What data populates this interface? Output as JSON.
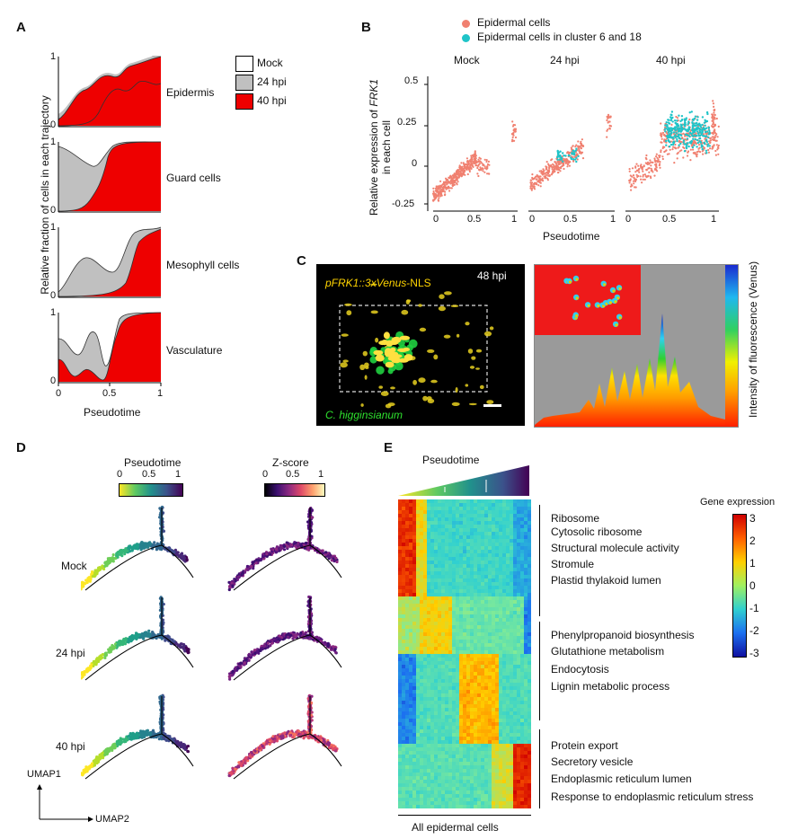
{
  "panels": {
    "a": "A",
    "b": "B",
    "c": "C",
    "d": "D",
    "e": "E"
  },
  "panelA": {
    "ylabel": "Relative fraction of cells in each trajectory",
    "xlabel": "Pseudotime",
    "xticks": [
      "0",
      "0.5",
      "1"
    ],
    "yticks": [
      "1",
      "0"
    ],
    "legend": [
      "Mock",
      "24 hpi",
      "40 hpi"
    ],
    "colors": {
      "mock": "#ffffff",
      "hpi24": "#c0c0c0",
      "hpi40": "#ee0000"
    },
    "rows": [
      "Epidermis",
      "Guard cells",
      "Mesophyll cells",
      "Vasculature"
    ]
  },
  "panelB": {
    "legend": [
      "Epidermal cells",
      "Epidermal cells in cluster 6 and 18"
    ],
    "colors": {
      "epi": "#f08070",
      "cluster": "#1fc4c8"
    },
    "ylabel_line1": "Relative expression of",
    "ylabel_gene": "FRK1",
    "ylabel_line2": "in each cell",
    "xlabel": "Pseudotime",
    "facets": [
      "Mock",
      "24 hpi",
      "40 hpi"
    ],
    "yticks": [
      "0.5",
      "0.25",
      "0",
      "-0.25"
    ],
    "xticks": [
      "0",
      "0.5",
      "1"
    ]
  },
  "panelC": {
    "construct_italic": "pFRK1::3xVenus",
    "construct_rest": "-NLS",
    "time": "48 hpi",
    "pathogen": "C. higginsianum",
    "colorbar_label": "Intensity of fluorescence (Venus)"
  },
  "panelD": {
    "pseudotime_title": "Pseudotime",
    "zscore_title": "Z-score",
    "cb_ticks": [
      "0",
      "0.5",
      "1"
    ],
    "rows": [
      "Mock",
      "24 hpi",
      "40 hpi"
    ],
    "axis_y": "UMAP1",
    "axis_x": "UMAP2"
  },
  "panelE": {
    "pseudotime": "Pseudotime",
    "legend_title": "Gene expression",
    "legend_ticks": [
      "3",
      "2",
      "1",
      "0",
      "-1",
      "-2",
      "-3"
    ],
    "xlabel": "All epidermal cells",
    "group1": [
      "Ribosome",
      "Cytosolic ribosome",
      "Structural molecule activity",
      "Stromule",
      "Plastid thylakoid lumen"
    ],
    "group2": [
      "Phenylpropanoid biosynthesis",
      "Glutathione metabolism",
      "Endocytosis",
      "Lignin metabolic process"
    ],
    "group3": [
      "Protein export",
      "Secretory vesicle",
      "Endoplasmic reticulum lumen",
      "Response to endoplasmic reticulum stress"
    ]
  }
}
